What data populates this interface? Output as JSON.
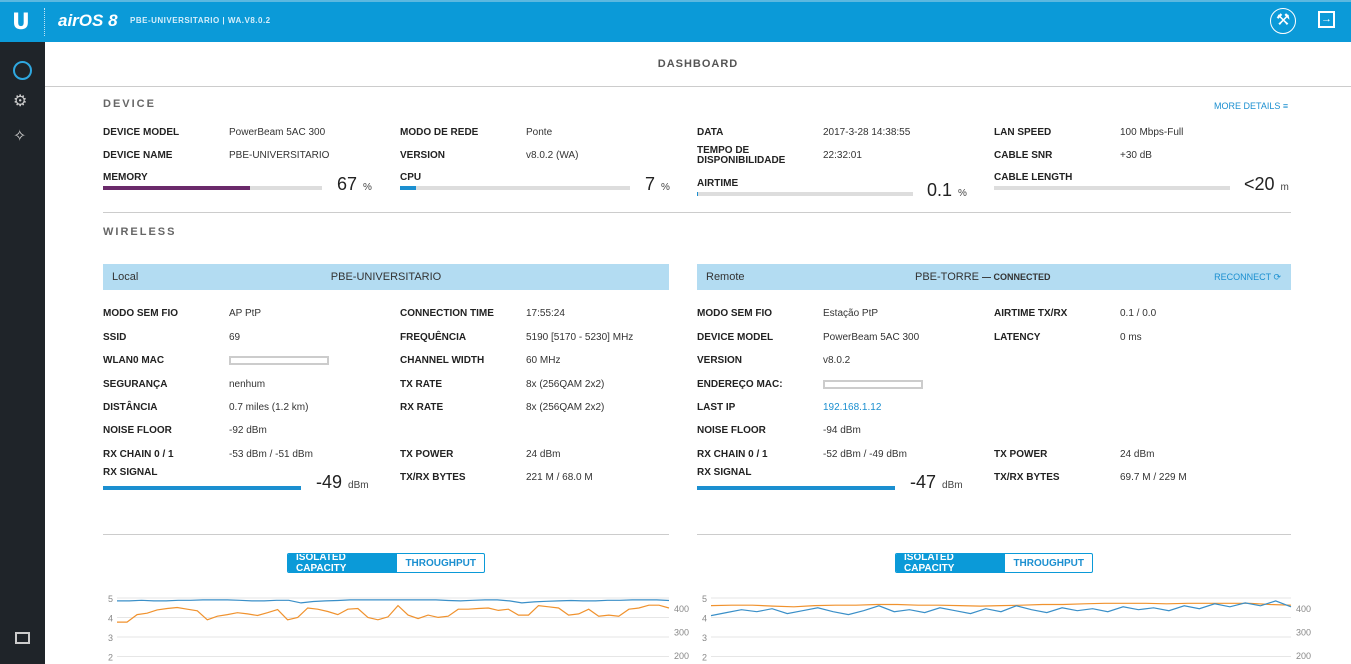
{
  "header": {
    "logo": "U",
    "product": "airOS 8",
    "subtitle": "PBE-UNIVERSITARIO | WA.V8.0.2"
  },
  "page_title": "DASHBOARD",
  "device": {
    "title": "DEVICE",
    "more_details": "MORE DETAILS ≡",
    "fields": [
      {
        "label": "DEVICE MODEL",
        "value": "PowerBeam 5AC 300"
      },
      {
        "label": "DEVICE NAME",
        "value": "PBE-UNIVERSITARIO"
      },
      {
        "label": "MODO DE REDE",
        "value": "Ponte"
      },
      {
        "label": "VERSION",
        "value": "v8.0.2 (WA)"
      },
      {
        "label": "DATA",
        "value": "2017-3-28 14:38:55"
      },
      {
        "label": "TEMPO DE DISPONIBILIDADE",
        "value": "22:32:01"
      },
      {
        "label": "LAN SPEED",
        "value": "100 Mbps-Full"
      },
      {
        "label": "CABLE SNR",
        "value": "+30 dB"
      }
    ],
    "meters": [
      {
        "label": "MEMORY",
        "value": "67",
        "unit": "%",
        "fill": 67,
        "color": "#6b2a6b"
      },
      {
        "label": "CPU",
        "value": "7",
        "unit": "%",
        "fill": 7,
        "color": "#1b8fd0"
      },
      {
        "label": "AIRTIME",
        "value": "0.1",
        "unit": "%",
        "fill": 0.1,
        "color": "#1b8fd0"
      },
      {
        "label": "CABLE LENGTH",
        "value": "<20",
        "unit": "m",
        "fill": 0,
        "color": "#1b8fd0"
      }
    ]
  },
  "wireless": {
    "title": "WIRELESS",
    "local": {
      "side": "Local",
      "name": "PBE-UNIVERSITARIO",
      "fields": [
        {
          "label": "MODO SEM FIO",
          "value": "AP PtP"
        },
        {
          "label": "SSID",
          "value": "69"
        },
        {
          "label": "WLAN0 MAC",
          "value": ""
        },
        {
          "label": "SEGURANÇA",
          "value": "nenhum"
        },
        {
          "label": "DISTÂNCIA",
          "value": "0.7 miles (1.2 km)"
        },
        {
          "label": "NOISE FLOOR",
          "value": "-92 dBm"
        },
        {
          "label": "RX CHAIN 0 / 1",
          "value": "-53 dBm / -51 dBm"
        },
        {
          "label": "CONNECTION TIME",
          "value": "17:55:24"
        },
        {
          "label": "FREQUÊNCIA",
          "value": "5190 [5170 - 5230] MHz"
        },
        {
          "label": "CHANNEL WIDTH",
          "value": "60 MHz"
        },
        {
          "label": "TX RATE",
          "value": "8x (256QAM 2x2)"
        },
        {
          "label": "RX RATE",
          "value": "8x (256QAM 2x2)"
        },
        {
          "label": "TX POWER",
          "value": "24 dBm"
        },
        {
          "label": "TX/RX BYTES",
          "value": "221 M / 68.0 M"
        }
      ],
      "rx_signal": {
        "label": "RX SIGNAL",
        "value": "-49",
        "unit": "dBm",
        "fill": 85
      }
    },
    "remote": {
      "side": "Remote",
      "name": "PBE-TORRE",
      "status": "— CONNECTED",
      "reconnect": "RECONNECT ⟳",
      "fields": [
        {
          "label": "MODO SEM FIO",
          "value": "Estação PtP"
        },
        {
          "label": "DEVICE MODEL",
          "value": "PowerBeam 5AC 300"
        },
        {
          "label": "VERSION",
          "value": "v8.0.2"
        },
        {
          "label": "ENDEREÇO MAC:",
          "value": ""
        },
        {
          "label": "LAST IP",
          "value": "192.168.1.12"
        },
        {
          "label": "NOISE FLOOR",
          "value": "-94 dBm"
        },
        {
          "label": "RX CHAIN 0 / 1",
          "value": "-52 dBm / -49 dBm"
        },
        {
          "label": "AIRTIME TX/RX",
          "value": "0.1 / 0.0"
        },
        {
          "label": "LATENCY",
          "value": "0 ms"
        },
        {
          "label": "TX POWER",
          "value": "24 dBm"
        },
        {
          "label": "TX/RX BYTES",
          "value": "69.7 M / 229 M"
        }
      ],
      "rx_signal": {
        "label": "RX SIGNAL",
        "value": "-47",
        "unit": "dBm",
        "fill": 85
      }
    }
  },
  "chart_tabs": [
    "ISOLATED CAPACITY",
    "THROUGHPUT"
  ],
  "chart_data": [
    {
      "type": "line",
      "left_ticks": [
        "5",
        "4",
        "3",
        "2"
      ],
      "right_ticks": [
        "400",
        "300",
        "200"
      ],
      "ylim_left": [
        2,
        5
      ],
      "ylim_right": [
        200,
        450
      ],
      "series": [
        {
          "name": "blue",
          "axis": "left",
          "color": "#3a8fc8",
          "values": [
            4.85,
            4.85,
            4.88,
            4.85,
            4.85,
            4.88,
            4.88,
            4.9,
            4.9,
            4.9,
            4.88,
            4.85,
            4.85,
            4.88,
            4.88,
            4.75,
            4.82,
            4.85,
            4.87,
            4.9,
            4.9,
            4.9,
            4.9,
            4.9,
            4.9,
            4.9,
            4.9,
            4.87,
            4.85,
            4.88,
            4.9,
            4.9,
            4.85,
            4.75,
            4.8,
            4.83,
            4.85,
            4.87,
            4.85,
            4.85,
            4.88,
            4.88,
            4.9,
            4.9,
            4.9,
            4.87
          ]
        },
        {
          "name": "orange",
          "axis": "right",
          "color": "#f0922e",
          "values": [
            340,
            340,
            372,
            378,
            392,
            398,
            402,
            395,
            388,
            350,
            365,
            372,
            380,
            375,
            368,
            380,
            393,
            350,
            360,
            400,
            395,
            385,
            372,
            395,
            398,
            360,
            350,
            362,
            410,
            370,
            355,
            370,
            360,
            365,
            395,
            395,
            398,
            400,
            390,
            395,
            370,
            370,
            410,
            405,
            400,
            370,
            375,
            395,
            365,
            370,
            365,
            395,
            400,
            412,
            412,
            400
          ]
        }
      ]
    },
    {
      "type": "line",
      "left_ticks": [
        "5",
        "4",
        "3",
        "2"
      ],
      "right_ticks": [
        "400",
        "300",
        "200"
      ],
      "ylim_left": [
        2,
        5
      ],
      "ylim_right": [
        200,
        450
      ],
      "series": [
        {
          "name": "orange",
          "axis": "right",
          "color": "#f0922e",
          "values": [
            410,
            412,
            412,
            408,
            405,
            410,
            412,
            412,
            415,
            415,
            412,
            412,
            410,
            408,
            410,
            412,
            415,
            415,
            418,
            420,
            420,
            420,
            418,
            420,
            420,
            420,
            420,
            415,
            412
          ]
        },
        {
          "name": "blue",
          "axis": "left",
          "color": "#3a8fc8",
          "values": [
            4.1,
            4.25,
            4.4,
            4.3,
            4.45,
            4.2,
            4.35,
            4.5,
            4.3,
            4.15,
            4.35,
            4.6,
            4.3,
            4.4,
            4.25,
            4.5,
            4.35,
            4.2,
            4.45,
            4.3,
            4.6,
            4.4,
            4.25,
            4.5,
            4.35,
            4.45,
            4.3,
            4.55,
            4.4,
            4.5,
            4.35,
            4.6,
            4.45,
            4.7,
            4.55,
            4.75,
            4.6,
            4.85,
            4.55
          ]
        }
      ]
    }
  ]
}
